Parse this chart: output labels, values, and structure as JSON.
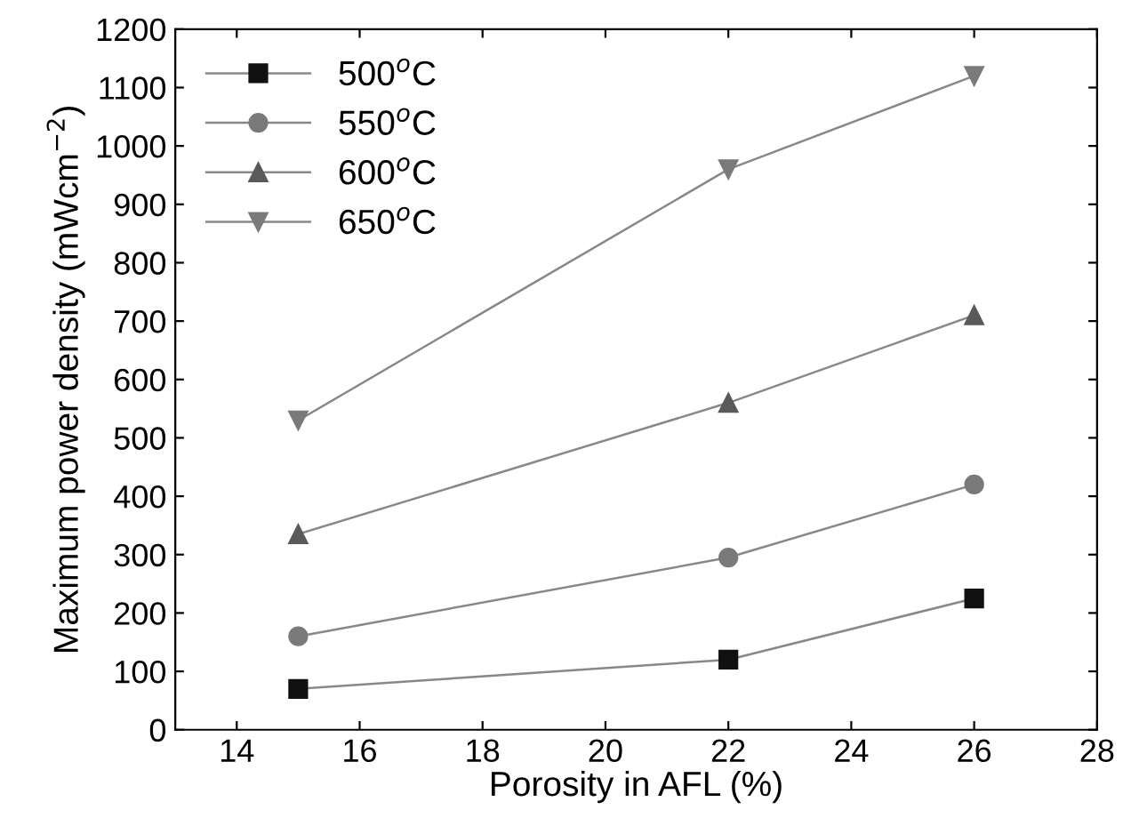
{
  "chart_data": {
    "type": "line",
    "xlabel": "Porosity in AFL (%)",
    "ylabel": "Maximum power density (mWcm$^{−2}$)",
    "x": [
      15,
      22,
      26
    ],
    "series": [
      {
        "name": "500$^{o}$C",
        "color": "#111111",
        "marker": "square",
        "values": [
          70,
          120,
          225
        ]
      },
      {
        "name": "550$^{o}$C",
        "color": "#7a7a7a",
        "marker": "circle",
        "values": [
          160,
          295,
          420
        ]
      },
      {
        "name": "600$^{o}$C",
        "color": "#5a5a5a",
        "marker": "triangle",
        "values": [
          335,
          560,
          710
        ]
      },
      {
        "name": "650$^{o}$C",
        "color": "#7a7a7a",
        "marker": "triangle_down",
        "values": [
          530,
          960,
          1120
        ]
      }
    ],
    "xlim": [
      13,
      28
    ],
    "xticks": [
      14,
      16,
      18,
      20,
      22,
      24,
      26,
      28
    ],
    "ylim": [
      0,
      1200
    ],
    "yticks": [
      0,
      100,
      200,
      300,
      400,
      500,
      600,
      700,
      800,
      900,
      1000,
      1100,
      1200
    ],
    "legend": "top left",
    "grid": false,
    "line_style": "solid"
  }
}
